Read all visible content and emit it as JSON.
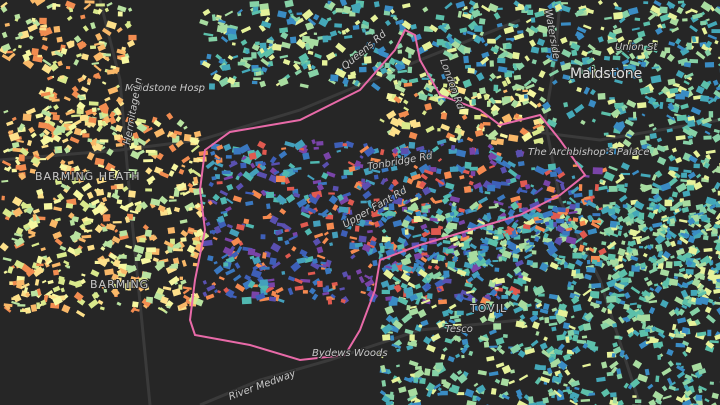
{
  "labels": [
    "Maidstone",
    "Maidstone Hosp",
    "Hermitage Ln",
    "BARMING HEATH",
    "BARMING",
    "Tonbridge Rd",
    "Upper Fant Rd",
    "The Archbishop's Palace",
    "Bydews Woods",
    "River Medway",
    "Waterside",
    "Union St",
    "TOVIL",
    "Tesco",
    "Queens Rd",
    "London Rd"
  ]
}
